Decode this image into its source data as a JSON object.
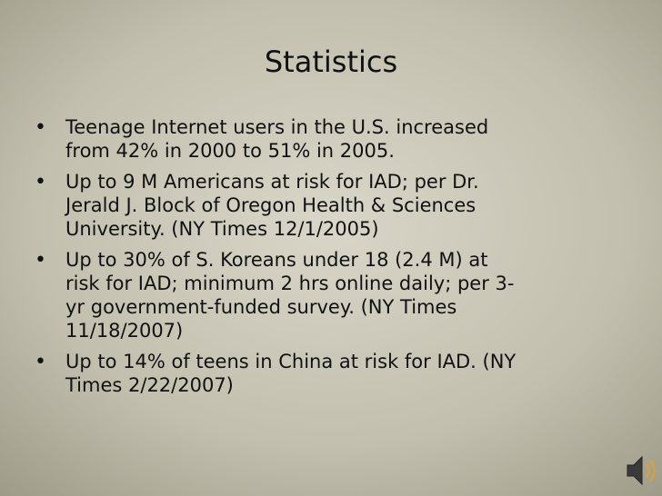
{
  "slide": {
    "title": "Statistics",
    "bullets": [
      {
        "lines": [
          "Teenage Internet users in the U.S. increased",
          "from 42% in 2000 to 51% in 2005."
        ]
      },
      {
        "lines": [
          "Up to 9 M Americans at risk for IAD; per Dr.",
          "Jerald J. Block of Oregon Health & Sciences",
          "University. (NY Times 12/1/2005)"
        ]
      },
      {
        "lines": [
          "Up to 30% of S. Koreans under 18 (2.4 M) at",
          "risk for IAD; minimum 2 hrs online daily; per 3-",
          "yr government-funded survey. (NY Times",
          "11/18/2007)"
        ]
      },
      {
        "lines": [
          "Up to 14% of teens in China at risk for IAD. (NY",
          "Times 2/22/2007)"
        ]
      }
    ]
  }
}
